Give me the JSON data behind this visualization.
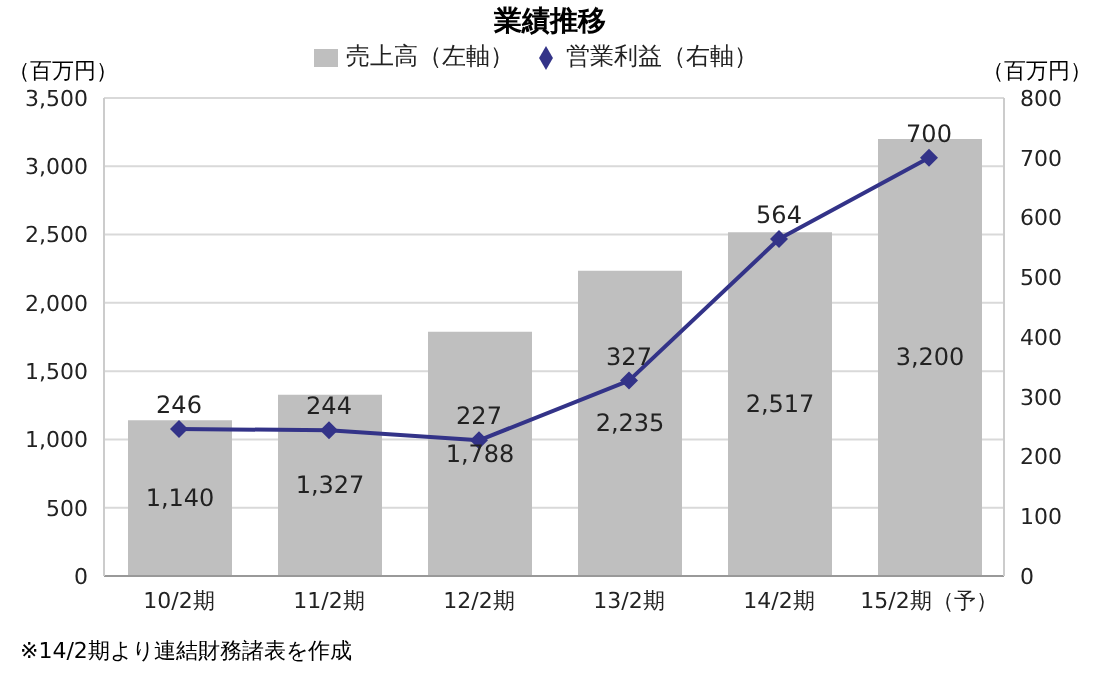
{
  "chart_data": {
    "type": "bar",
    "title": "業績推移",
    "ylabel": "（百万円）",
    "y2label": "（百万円）",
    "categories": [
      "10/2期",
      "11/2期",
      "12/2期",
      "13/2期",
      "14/2期",
      "15/2期（予）"
    ],
    "series": [
      {
        "name": "売上高（左軸）",
        "color": "#bfbfbf",
        "values": [
          1140,
          1327,
          1788,
          2235,
          2517,
          3200
        ],
        "value_labels": [
          "1,140",
          "1,327",
          "1,788",
          "2,235",
          "2,517",
          "3,200"
        ]
      },
      {
        "name": "営業利益（右軸）",
        "type": "line",
        "axis": "y2",
        "color": "#333388",
        "values": [
          246,
          244,
          227,
          327,
          564,
          700
        ],
        "value_labels": [
          "246",
          "244",
          "227",
          "327",
          "564",
          "700"
        ]
      }
    ],
    "ylim": [
      0,
      3500
    ],
    "yticks": [
      0,
      500,
      {
        "value": 1000,
        "label": "1,000"
      },
      {
        "value": 1500,
        "label": "1,500"
      },
      {
        "value": 2000,
        "label": "2,000"
      },
      {
        "value": 2500,
        "label": "2,500"
      },
      {
        "value": 3000,
        "label": "3,000"
      },
      {
        "value": 3500,
        "label": "3,500"
      }
    ],
    "y2lim": [
      0,
      800
    ],
    "y2ticks": [
      0,
      100,
      200,
      300,
      400,
      500,
      600,
      700,
      800
    ],
    "grid": "y",
    "legend": "top",
    "marker": "diamond",
    "annotations": [
      "※14/2期より連結財務諸表を作成"
    ]
  }
}
